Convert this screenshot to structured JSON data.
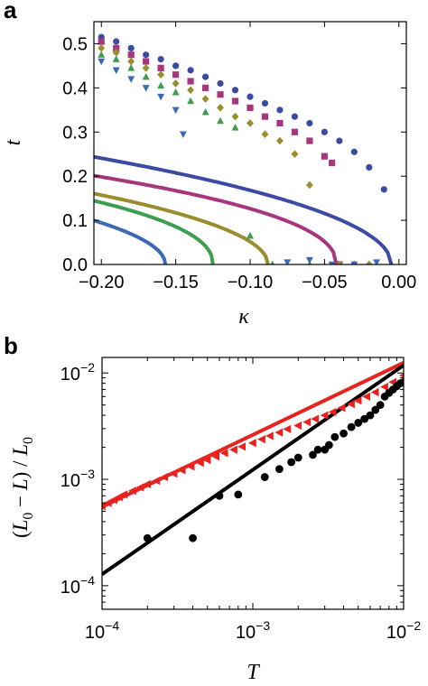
{
  "chart_data": [
    {
      "panel": "a",
      "type": "line",
      "xlabel": "κ",
      "ylabel": "t",
      "xlim": [
        -0.205,
        0.005
      ],
      "ylim": [
        0.0,
        0.55
      ],
      "xticks": [
        -0.2,
        -0.15,
        -0.1,
        -0.05,
        0.0
      ],
      "xtick_labels": [
        "−0.20",
        "−0.15",
        "−0.10",
        "−0.05",
        "0.00"
      ],
      "yticks": [
        0.0,
        0.1,
        0.2,
        0.3,
        0.4,
        0.5
      ],
      "ytick_labels": [
        "0.0",
        "0.1",
        "0.2",
        "0.3",
        "0.4",
        "0.5"
      ],
      "grid": false,
      "series": [
        {
          "color": "#3b4aa3",
          "curve": {
            "kc": -0.005,
            "a": 0.545,
            "p": 0.5,
            "drop_to_zero": true
          },
          "marker": "circle",
          "points": [
            [
              -0.2,
              0.515
            ],
            [
              -0.19,
              0.505
            ],
            [
              -0.18,
              0.49
            ],
            [
              -0.17,
              0.475
            ],
            [
              -0.16,
              0.465
            ],
            [
              -0.15,
              0.45
            ],
            [
              -0.14,
              0.44
            ],
            [
              -0.13,
              0.425
            ],
            [
              -0.12,
              0.41
            ],
            [
              -0.11,
              0.395
            ],
            [
              -0.1,
              0.38
            ],
            [
              -0.09,
              0.365
            ],
            [
              -0.08,
              0.35
            ],
            [
              -0.07,
              0.335
            ],
            [
              -0.06,
              0.32
            ],
            [
              -0.05,
              0.3
            ],
            [
              -0.04,
              0.28
            ],
            [
              -0.03,
              0.255
            ],
            [
              -0.02,
              0.22
            ],
            [
              -0.01,
              0.17
            ]
          ]
        },
        {
          "color": "#a7367e",
          "curve": {
            "kc": -0.042,
            "a": 0.455,
            "p": 0.45,
            "drop_to_zero": true
          },
          "marker": "square",
          "points": [
            [
              -0.2,
              0.505
            ],
            [
              -0.19,
              0.49
            ],
            [
              -0.18,
              0.475
            ],
            [
              -0.17,
              0.46
            ],
            [
              -0.16,
              0.445
            ],
            [
              -0.15,
              0.43
            ],
            [
              -0.14,
              0.415
            ],
            [
              -0.13,
              0.4
            ],
            [
              -0.12,
              0.385
            ],
            [
              -0.11,
              0.37
            ],
            [
              -0.1,
              0.355
            ],
            [
              -0.09,
              0.335
            ],
            [
              -0.08,
              0.32
            ],
            [
              -0.07,
              0.3
            ],
            [
              -0.06,
              0.28
            ],
            [
              -0.05,
              0.245
            ],
            [
              -0.045,
              0.23
            ],
            [
              -0.04,
              0.0
            ]
          ]
        },
        {
          "color": "#9a8d2d",
          "curve": {
            "kc": -0.088,
            "a": 0.47,
            "p": 0.5,
            "drop_to_zero": true
          },
          "marker": "diamond",
          "points": [
            [
              -0.2,
              0.49
            ],
            [
              -0.19,
              0.48
            ],
            [
              -0.18,
              0.46
            ],
            [
              -0.17,
              0.445
            ],
            [
              -0.16,
              0.43
            ],
            [
              -0.15,
              0.41
            ],
            [
              -0.14,
              0.395
            ],
            [
              -0.13,
              0.375
            ],
            [
              -0.12,
              0.355
            ],
            [
              -0.11,
              0.335
            ],
            [
              -0.1,
              0.32
            ],
            [
              -0.09,
              0.295
            ],
            [
              -0.08,
              0.28
            ],
            [
              -0.07,
              0.25
            ],
            [
              -0.06,
              0.18
            ],
            [
              -0.04,
              0.0
            ],
            [
              -0.03,
              0.0
            ],
            [
              -0.02,
              0.0
            ]
          ]
        },
        {
          "color": "#3d9e50",
          "curve": {
            "kc": -0.125,
            "a": 0.45,
            "p": 0.45,
            "drop_to_zero": true
          },
          "marker": "triangle-up",
          "points": [
            [
              -0.2,
              0.475
            ],
            [
              -0.19,
              0.465
            ],
            [
              -0.18,
              0.445
            ],
            [
              -0.17,
              0.425
            ],
            [
              -0.16,
              0.405
            ],
            [
              -0.15,
              0.39
            ],
            [
              -0.14,
              0.37
            ],
            [
              -0.13,
              0.345
            ],
            [
              -0.12,
              0.325
            ],
            [
              -0.11,
              0.31
            ],
            [
              -0.1,
              0.065
            ],
            [
              -0.085,
              0.0
            ],
            [
              -0.06,
              0.0
            ]
          ]
        },
        {
          "color": "#3b69b3",
          "curve": {
            "kc": -0.157,
            "a": 0.455,
            "p": 0.5,
            "drop_to_zero": true
          },
          "marker": "triangle-down",
          "points": [
            [
              -0.2,
              0.46
            ],
            [
              -0.19,
              0.44
            ],
            [
              -0.18,
              0.42
            ],
            [
              -0.17,
              0.4
            ],
            [
              -0.16,
              0.38
            ],
            [
              -0.15,
              0.35
            ],
            [
              -0.145,
              0.295
            ],
            [
              -0.075,
              0.005
            ],
            [
              -0.06,
              0.01
            ],
            [
              -0.045,
              0.0
            ],
            [
              -0.03,
              0.0
            ],
            [
              -0.015,
              0.005
            ]
          ]
        }
      ]
    },
    {
      "panel": "b",
      "type": "scatter",
      "xlabel": "T",
      "ylabel": "(L0 − L) / L0",
      "xscale": "log",
      "yscale": "log",
      "xlim": [
        0.0001,
        0.01
      ],
      "ylim": [
        6e-05,
        0.014
      ],
      "xticks": [
        0.0001,
        0.001,
        0.01
      ],
      "xtick_exponents": [
        "−4",
        "−3",
        "−2"
      ],
      "yticks": [
        0.0001,
        0.001,
        0.01
      ],
      "ytick_exponents": [
        "−4",
        "−3",
        "−2"
      ],
      "grid": false,
      "series": [
        {
          "color": "#e8231f",
          "marker": "triangle-left",
          "fit_line": [
            [
              0.0001,
              0.00055
            ],
            [
              0.01,
              0.0125
            ]
          ],
          "points": [
            [
              0.0001,
              0.00056
            ],
            [
              0.00011,
              0.0006
            ],
            [
              0.00012,
              0.00064
            ],
            [
              0.00013,
              0.00068
            ],
            [
              0.00014,
              0.00072
            ],
            [
              0.00016,
              0.00078
            ],
            [
              0.00018,
              0.00084
            ],
            [
              0.0002,
              0.0009
            ],
            [
              0.00023,
              0.00097
            ],
            [
              0.00026,
              0.00105
            ],
            [
              0.0003,
              0.00113
            ],
            [
              0.00034,
              0.00122
            ],
            [
              0.00039,
              0.00132
            ],
            [
              0.00045,
              0.00143
            ],
            [
              0.0005,
              0.00152
            ],
            [
              0.00057,
              0.00164
            ],
            [
              0.00065,
              0.00177
            ],
            [
              0.00075,
              0.0019
            ],
            [
              0.00085,
              0.00203
            ],
            [
              0.001,
              0.0022
            ],
            [
              0.00115,
              0.00238
            ],
            [
              0.0013,
              0.00256
            ],
            [
              0.0015,
              0.00276
            ],
            [
              0.0017,
              0.00297
            ],
            [
              0.002,
              0.0032
            ],
            [
              0.0023,
              0.00345
            ],
            [
              0.0026,
              0.0037
            ],
            [
              0.003,
              0.004
            ],
            [
              0.0034,
              0.0043
            ],
            [
              0.0039,
              0.0047
            ],
            [
              0.0045,
              0.0051
            ],
            [
              0.005,
              0.0055
            ],
            [
              0.0057,
              0.006
            ],
            [
              0.0065,
              0.0066
            ],
            [
              0.0075,
              0.0074
            ],
            [
              0.0085,
              0.0082
            ],
            [
              0.01,
              0.0095
            ]
          ]
        },
        {
          "color": "#000000",
          "marker": "circle",
          "fit_line": [
            [
              0.0001,
              0.000128
            ],
            [
              0.01,
              0.0118
            ]
          ],
          "points": [
            [
              0.0002,
              0.00028
            ],
            [
              0.0004,
              0.00028
            ],
            [
              0.0006,
              0.0007
            ],
            [
              0.0008,
              0.00072
            ],
            [
              0.0012,
              0.00105
            ],
            [
              0.0015,
              0.00125
            ],
            [
              0.0018,
              0.00145
            ],
            [
              0.002,
              0.0016
            ],
            [
              0.0025,
              0.0017
            ],
            [
              0.0027,
              0.0019
            ],
            [
              0.003,
              0.0019
            ],
            [
              0.0032,
              0.0021
            ],
            [
              0.0035,
              0.0025
            ],
            [
              0.004,
              0.0027
            ],
            [
              0.0045,
              0.0031
            ],
            [
              0.005,
              0.0034
            ],
            [
              0.0055,
              0.0037
            ],
            [
              0.006,
              0.004
            ],
            [
              0.0065,
              0.0045
            ],
            [
              0.007,
              0.005
            ],
            [
              0.0075,
              0.006
            ],
            [
              0.008,
              0.0065
            ],
            [
              0.0085,
              0.007
            ],
            [
              0.009,
              0.0075
            ],
            [
              0.0095,
              0.008
            ],
            [
              0.01,
              0.0082
            ]
          ]
        }
      ]
    }
  ]
}
